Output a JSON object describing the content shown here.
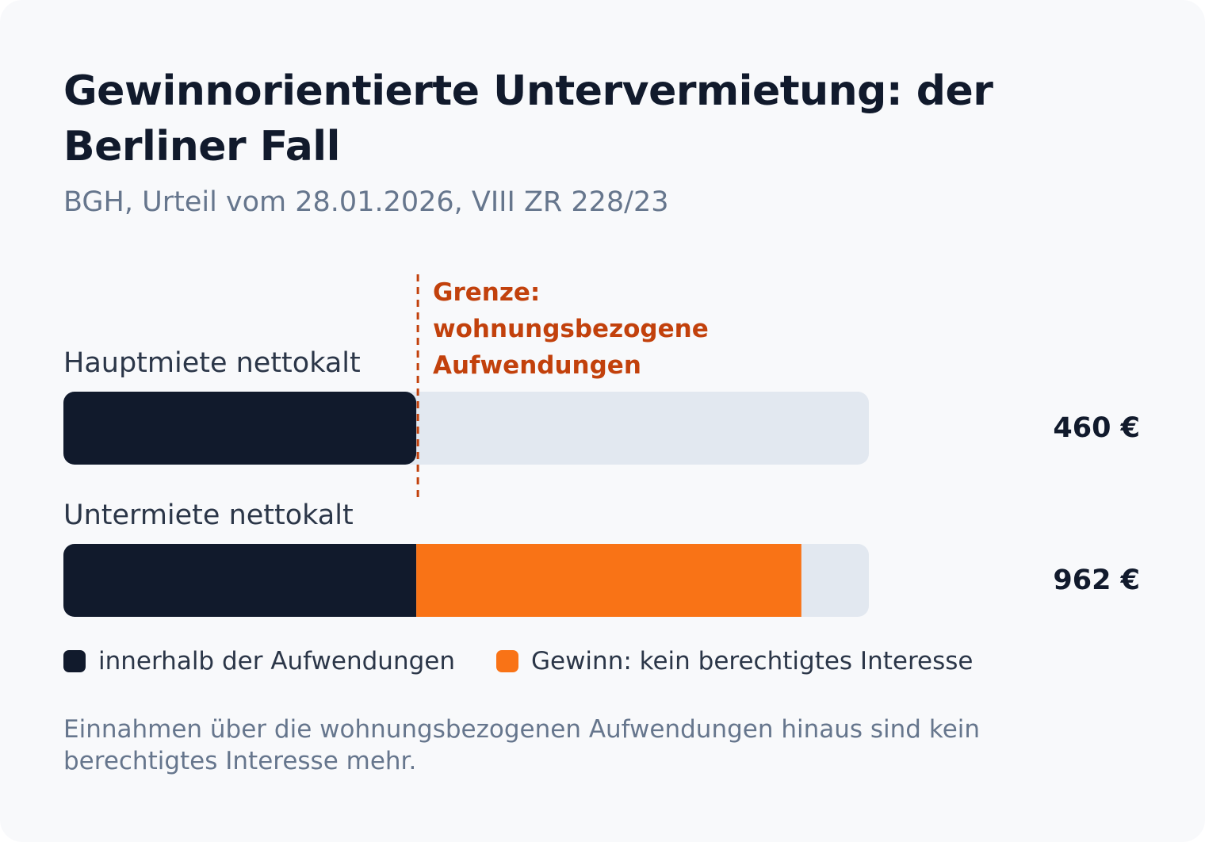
{
  "title": "Gewinnorientierte Untervermietung: der Berliner Fall",
  "subtitle": "BGH, Urteil vom 28.01.2026, VIII ZR 228/23",
  "colors": {
    "background": "#f8f9fb",
    "navy": "#111a2c",
    "orange": "#f97316",
    "track": "#e2e8f0",
    "threshold": "#c2410c"
  },
  "chart_data": {
    "type": "bar",
    "orientation": "horizontal",
    "stacked": true,
    "categories": [
      "Hauptmiete nettokalt",
      "Untermiete nettokalt"
    ],
    "totals": [
      "460 €",
      "962 €"
    ],
    "series": [
      {
        "name": "innerhalb der Aufwendungen",
        "values": [
          460,
          460
        ],
        "color": "#111a2c"
      },
      {
        "name": "Gewinn: kein berechtigtes Interesse",
        "values": [
          0,
          502
        ],
        "color": "#f97316"
      }
    ],
    "xlim": [
      0,
      1050
    ],
    "threshold": {
      "value": 460,
      "label": [
        "Grenze:",
        "wohnungsbezogene",
        "Aufwendungen"
      ]
    },
    "legend_position": "bottom-left"
  },
  "note": "Einnahmen über die wohnungsbezogenen Aufwendungen hinaus sind kein berechtigtes Interesse mehr."
}
